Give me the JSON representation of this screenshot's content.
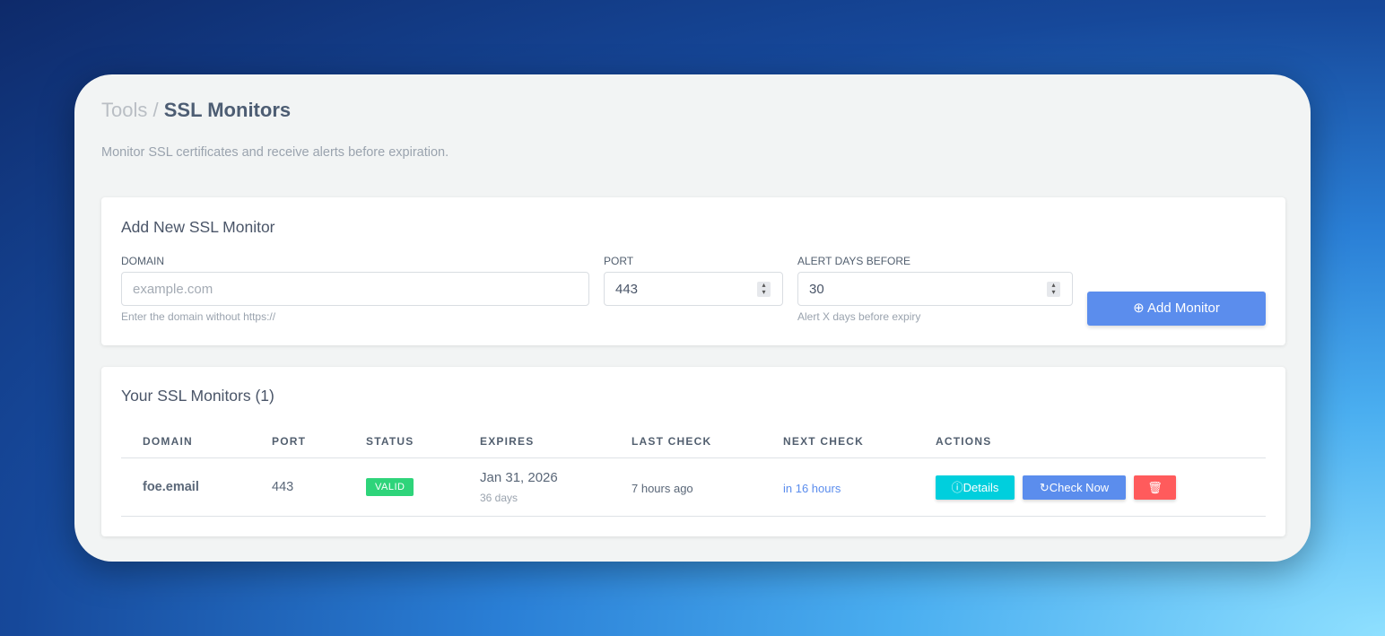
{
  "breadcrumb": {
    "parent": "Tools",
    "separator": "/",
    "current": "SSL Monitors"
  },
  "subtitle": "Monitor SSL certificates and receive alerts before expiration.",
  "add_form": {
    "title": "Add New SSL Monitor",
    "domain_label": "DOMAIN",
    "domain_placeholder": "example.com",
    "domain_hint": "Enter the domain without https://",
    "port_label": "PORT",
    "port_value": "443",
    "alert_label": "ALERT DAYS BEFORE",
    "alert_value": "30",
    "alert_hint": "Alert X days before expiry",
    "add_button": "Add Monitor"
  },
  "monitors": {
    "title": "Your SSL Monitors (1)",
    "columns": [
      "DOMAIN",
      "PORT",
      "STATUS",
      "EXPIRES",
      "LAST CHECK",
      "NEXT CHECK",
      "ACTIONS"
    ],
    "rows": [
      {
        "domain": "foe.email",
        "port": "443",
        "status": "VALID",
        "expires": "Jan 31, 2026",
        "expires_in": "36 days",
        "last_check": "7 hours ago",
        "next_check": "in 16 hours",
        "details": "Details",
        "check_now": "Check Now"
      }
    ]
  },
  "colors": {
    "primary": "#5b8ded",
    "info": "#00cfdd",
    "danger": "#ff5b5c",
    "success": "#2ed47a"
  }
}
